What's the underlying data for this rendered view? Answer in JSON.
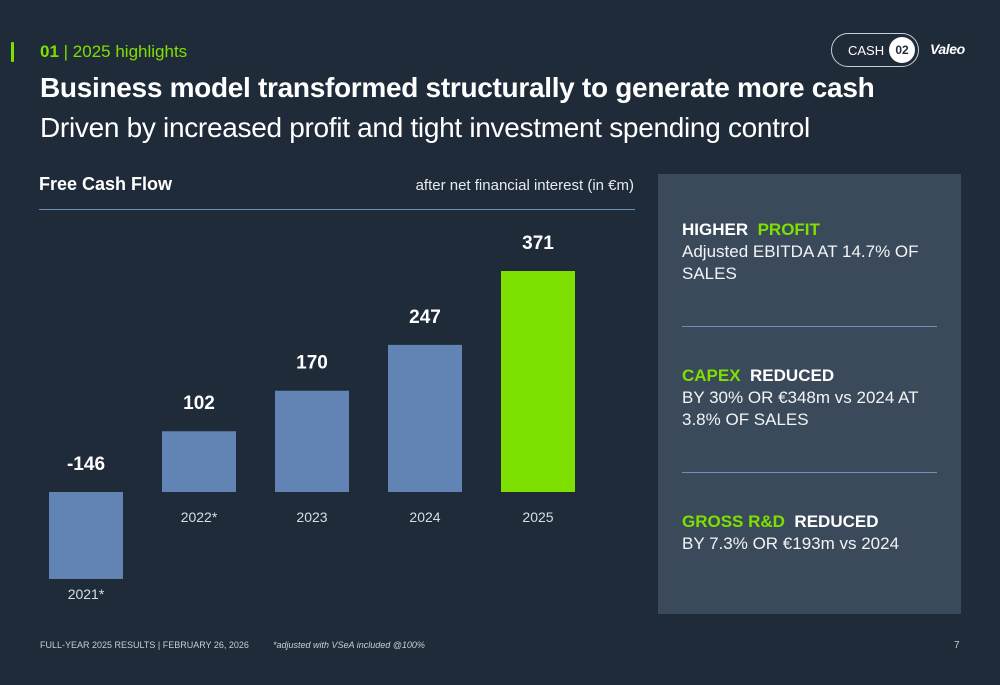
{
  "header": {
    "section_number": "01",
    "section_separator": " | ",
    "section_name": "2025 highlights",
    "title": "Business model transformed structurally to generate more cash",
    "subtitle": "Driven by increased profit and tight investment spending control",
    "pill_label": "CASH",
    "pill_number": "02",
    "logo": "Valeo"
  },
  "chart_title": "Free Cash Flow",
  "chart_unit": "after net financial interest (in €m)",
  "chart_data": {
    "type": "bar",
    "title": "Free Cash Flow",
    "ylabel": "after net financial interest (in €m)",
    "categories": [
      "2021*",
      "2022*",
      "2023",
      "2024",
      "2025"
    ],
    "values": [
      -146,
      102,
      170,
      247,
      371
    ],
    "value_labels": [
      "-146",
      "102",
      "170",
      "247",
      "371"
    ],
    "bar_color": "#6284b4",
    "highlight_color": "#7ee000",
    "highlight_index": 4,
    "grid": false
  },
  "panel": {
    "blocks": [
      {
        "head_prefix": "HIGHER",
        "head_prefix_highlight": false,
        "head_suffix": "PROFIT",
        "head_suffix_highlight": true,
        "body": "Adjusted EBITDA AT 14.7% OF SALES"
      },
      {
        "head_prefix": "CAPEX",
        "head_prefix_highlight": true,
        "head_suffix": "REDUCED",
        "head_suffix_highlight": false,
        "body": "BY 30% OR €348m vs 2024 AT 3.8% OF SALES"
      },
      {
        "head_prefix": "GROSS R&D",
        "head_prefix_highlight": true,
        "head_suffix": "REDUCED",
        "head_suffix_highlight": false,
        "body": "BY 7.3% OR €193m vs 2024"
      }
    ]
  },
  "footer": {
    "left": "FULL-YEAR 2025 RESULTS | FEBRUARY 26, 2026",
    "note": "*adjusted with VSeA included @100%",
    "page": "7"
  },
  "colors": {
    "background": "#1f2b38",
    "accent": "#7ee000",
    "panel": "#3a4a5b",
    "rule": "#6d8fb8"
  }
}
